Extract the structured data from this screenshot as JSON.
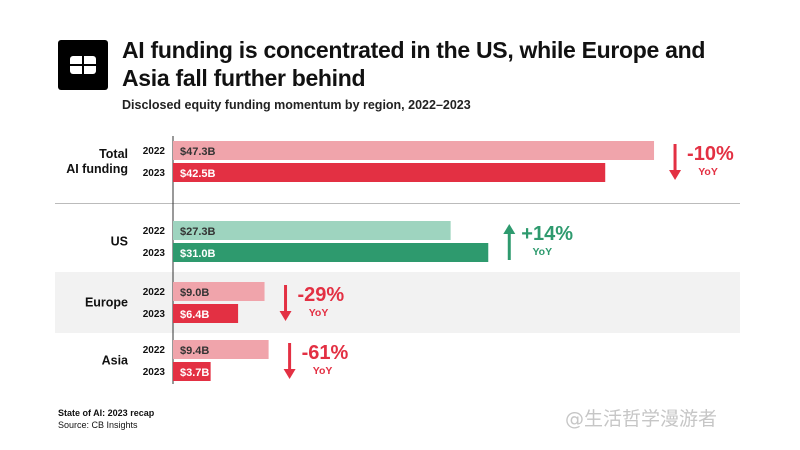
{
  "title": "AI funding is concentrated in the US, while Europe and Asia fall further behind",
  "subtitle": "Disclosed equity funding momentum by region, 2022–2023",
  "footer": {
    "line1": "State of AI: 2023 recap",
    "line2": "Source: CB Insights"
  },
  "watermark": "@生活哲学漫游者",
  "logo_icon": "cb-insights-logo-icon",
  "colors": {
    "decline_light": "#f0a4ab",
    "decline_dark": "#e33043",
    "growth_light": "#9ed4bf",
    "growth_dark": "#2e9a6e",
    "band": "#f2f2f2"
  },
  "chart_data": {
    "type": "bar",
    "orientation": "horizontal",
    "unit": "$B",
    "series_years": [
      "2022",
      "2023"
    ],
    "groups": [
      {
        "label_lines": [
          "Total",
          "AI funding"
        ],
        "values": [
          47.3,
          42.5
        ],
        "value_labels": [
          "$47.3B",
          "$42.5B"
        ],
        "change": "-10%",
        "change_note": "YoY",
        "direction": "down"
      },
      {
        "label_lines": [
          "US"
        ],
        "values": [
          27.3,
          31.0
        ],
        "value_labels": [
          "$27.3B",
          "$31.0B"
        ],
        "change": "+14%",
        "change_note": "YoY",
        "direction": "up"
      },
      {
        "label_lines": [
          "Europe"
        ],
        "values": [
          9.0,
          6.4
        ],
        "value_labels": [
          "$9.0B",
          "$6.4B"
        ],
        "change": "-29%",
        "change_note": "YoY",
        "direction": "down"
      },
      {
        "label_lines": [
          "Asia"
        ],
        "values": [
          9.4,
          3.7
        ],
        "value_labels": [
          "$9.4B",
          "$3.7B"
        ],
        "change": "-61%",
        "change_note": "YoY",
        "direction": "down"
      }
    ]
  }
}
